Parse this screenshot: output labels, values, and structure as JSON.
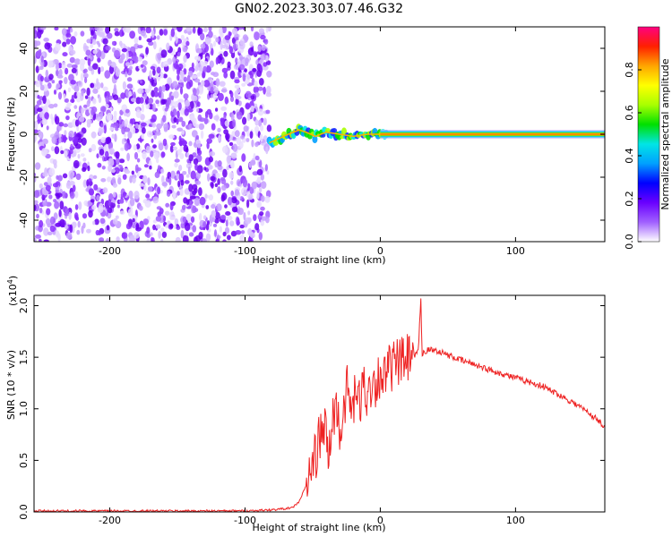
{
  "title": "GN02.2023.303.07.46.G32",
  "chart_data": [
    {
      "type": "heatmap",
      "xlabel": "Height of straight line (km)",
      "ylabel": "Frequency (Hz)",
      "xlim": [
        -256,
        166
      ],
      "ylim": [
        -50,
        50
      ],
      "xticks": [
        -200,
        -100,
        0,
        100
      ],
      "yticks": [
        -40,
        -20,
        0,
        20,
        40
      ],
      "noise_region_x": [
        -256,
        -82
      ],
      "signal_track": [
        {
          "x": -82,
          "y": -4
        },
        {
          "x": -75,
          "y": -2
        },
        {
          "x": -68,
          "y": 0
        },
        {
          "x": -60,
          "y": 2
        },
        {
          "x": -55,
          "y": 1
        },
        {
          "x": -48,
          "y": -1
        },
        {
          "x": -40,
          "y": 1
        },
        {
          "x": -30,
          "y": 0
        },
        {
          "x": -20,
          "y": -1
        },
        {
          "x": -10,
          "y": 0
        },
        {
          "x": 0,
          "y": 0
        },
        {
          "x": 166,
          "y": 0
        }
      ],
      "grid": false,
      "colorbar": {
        "label": "Normalized spectral amplitude",
        "range": [
          0.0,
          1.0
        ],
        "ticks": [
          "0.0",
          "0.2",
          "0.4",
          "0.6",
          "0.8"
        ],
        "colors": [
          "#ffffff",
          "#a060ff",
          "#6a00ff",
          "#0000ff",
          "#00a0ff",
          "#00e5e5",
          "#00e000",
          "#a8ff00",
          "#ffff00",
          "#ffa500",
          "#ff2000",
          "#ff0080"
        ]
      }
    },
    {
      "type": "line",
      "xlabel": "Height of straight line (km)",
      "ylabel": "SNR (10 * v/v)",
      "scale_label": "(x10",
      "scale_exp": "4",
      "scale_close": ")",
      "xlim": [
        -256,
        166
      ],
      "ylim": [
        0,
        2.1
      ],
      "xticks": [
        -200,
        -100,
        0,
        100
      ],
      "yticks": [
        "0.0",
        "0.5",
        "1.0",
        "1.5",
        "2.0"
      ],
      "grid": false,
      "color": "#ee2222",
      "series": [
        {
          "x": [
            -256,
            -200,
            -150,
            -100,
            -80,
            -65,
            -60,
            -55,
            -50,
            -47,
            -44,
            -41,
            -38,
            -35,
            -32,
            -30,
            -27,
            -24,
            -21,
            -18,
            -15,
            -12,
            -9,
            -6,
            -3,
            0,
            3,
            6,
            10,
            15,
            20,
            25,
            28,
            30,
            31,
            32,
            35,
            40,
            45,
            50,
            60,
            70,
            80,
            90,
            100,
            110,
            120,
            130,
            140,
            150,
            160,
            166
          ],
          "y": [
            0.01,
            0.01,
            0.01,
            0.01,
            0.02,
            0.04,
            0.1,
            0.25,
            0.45,
            0.6,
            0.75,
            0.8,
            0.55,
            0.9,
            1.05,
            0.7,
            1.05,
            1.2,
            0.95,
            1.15,
            1.05,
            1.25,
            1.1,
            1.3,
            1.25,
            1.35,
            1.3,
            1.38,
            1.42,
            1.45,
            1.48,
            1.5,
            1.55,
            2.05,
            1.5,
            1.55,
            1.57,
            1.57,
            1.55,
            1.52,
            1.47,
            1.43,
            1.38,
            1.34,
            1.3,
            1.26,
            1.22,
            1.15,
            1.08,
            1.0,
            0.9,
            0.83
          ]
        }
      ]
    }
  ]
}
